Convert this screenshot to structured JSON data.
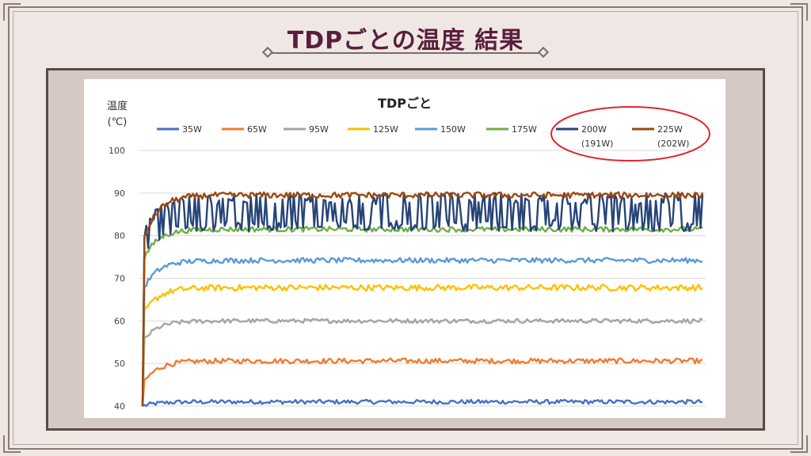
{
  "slide": {
    "title": "TDPごとの温度 結果"
  },
  "colors": {
    "background": "#efe7e4",
    "title": "#5a1e3c",
    "frame": "#5b4a44",
    "highlight_ellipse": "#e0262b"
  },
  "chart_data": {
    "type": "line",
    "title": "TDPごと",
    "ylabel_line1": "温度",
    "ylabel_line2": "(℃)",
    "ylim": [
      40,
      100
    ],
    "yticks": [
      "100",
      "90",
      "80",
      "70",
      "60",
      "50",
      "40"
    ],
    "grid": true,
    "legend_position": "top",
    "series": [
      {
        "name": "35W",
        "color": "#4472c4",
        "steady": 41,
        "start": 40,
        "amp": 0.5
      },
      {
        "name": "65W",
        "color": "#ed7d31",
        "steady": 50.6,
        "start": 45,
        "amp": 0.6
      },
      {
        "name": "95W",
        "color": "#a5a5a5",
        "steady": 60,
        "start": 55,
        "amp": 0.5
      },
      {
        "name": "125W",
        "color": "#ffc000",
        "steady": 67.8,
        "start": 61,
        "amp": 0.7
      },
      {
        "name": "150W",
        "color": "#5b9bd5",
        "steady": 74.2,
        "start": 67,
        "amp": 0.6
      },
      {
        "name": "175W",
        "color": "#70ad47",
        "steady": 81.5,
        "start": 74,
        "amp": 0.6
      },
      {
        "name": "200W",
        "sublabel": "(191W)",
        "color": "#264478",
        "steady": 85.5,
        "start": 76,
        "amp": 4.5
      },
      {
        "name": "225W",
        "sublabel": "(202W)",
        "color": "#9e480e",
        "steady": 89.5,
        "start": 78,
        "amp": 0.7
      }
    ]
  }
}
